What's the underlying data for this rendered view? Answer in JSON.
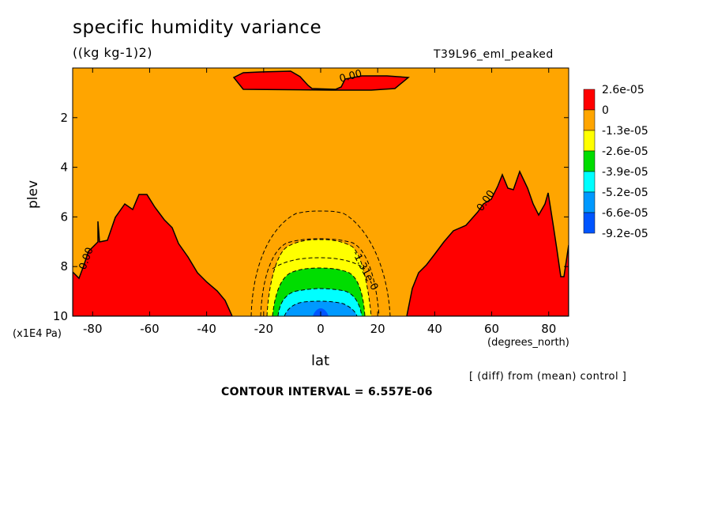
{
  "chart_data": {
    "type": "contour",
    "title": "specific humidity variance",
    "units": "((kg kg-1)2)",
    "run_label": "T39L96_eml_peaked",
    "xlabel": "lat",
    "x_units": "(degrees_north)",
    "ylabel": "plev",
    "y_units": "(x1E4 Pa)",
    "xlim": [
      -87,
      87
    ],
    "ylim": [
      10,
      0
    ],
    "x_ticks": [
      -80,
      -60,
      -40,
      -20,
      0,
      20,
      40,
      60,
      80
    ],
    "y_ticks": [
      2,
      4,
      6,
      8,
      10
    ],
    "diff_note": "[ (diff) from (mean) control ]",
    "contour_interval": "CONTOUR INTERVAL = 6.557E-06",
    "contour_labels": [
      "0.00",
      "0.00",
      "0.00",
      "-1.31e-0",
      "0.00"
    ],
    "legend": {
      "labels": [
        "2.6e-05",
        "0",
        "-1.3e-05",
        "-2.6e-05",
        "-3.9e-05",
        "-5.2e-05",
        "-6.6e-05",
        "-9.2e-05"
      ],
      "colors": [
        "#ff0000",
        "#ffa500",
        "#ffff00",
        "#00dd00",
        "#00ffff",
        "#0099ff",
        "#0055ff"
      ]
    }
  }
}
